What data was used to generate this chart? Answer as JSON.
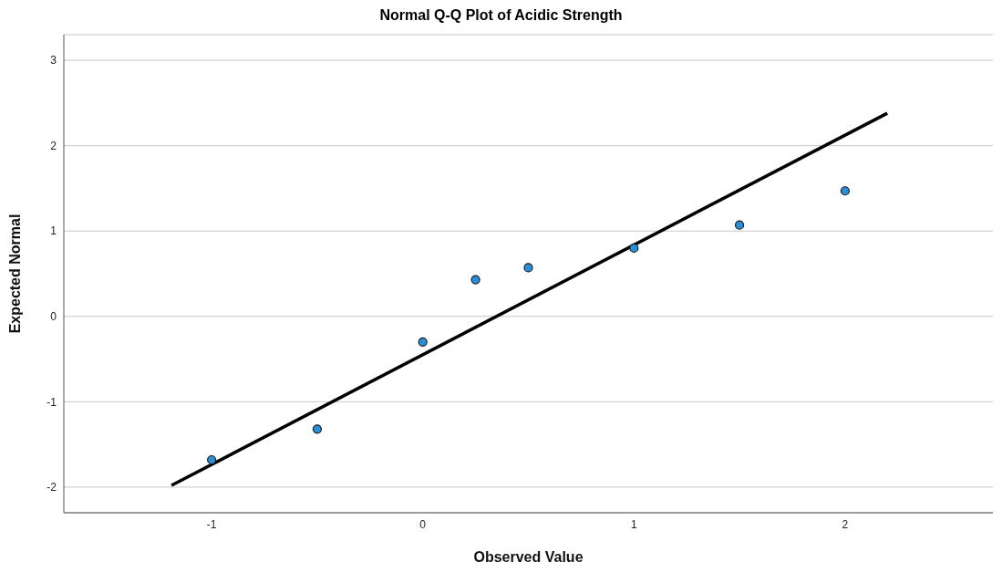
{
  "chart_data": {
    "type": "scatter",
    "title": "Normal Q-Q Plot of Acidic Strength",
    "xlabel": "Observed Value",
    "ylabel": "Expected Normal",
    "xlim": [
      -1.7,
      2.7
    ],
    "xticks": [
      -1,
      0,
      1,
      2
    ],
    "ylim": [
      -2.3,
      3.3
    ],
    "yticks": [
      -2,
      -1,
      0,
      1,
      2,
      3
    ],
    "grid": "y",
    "series": [
      {
        "marker": "circle",
        "color": "#2b8fd8",
        "x": [
          -1,
          -0.5,
          0,
          0.25,
          0.5,
          1,
          1.5,
          2
        ],
        "values": [
          -1.68,
          -1.32,
          -0.3,
          0.43,
          0.57,
          0.8,
          1.07,
          1.47
        ]
      },
      {
        "type": "line",
        "marker": "none",
        "color": "#000000",
        "x": [
          -1.19,
          2.2
        ],
        "values": [
          -1.98,
          2.38
        ]
      }
    ]
  }
}
